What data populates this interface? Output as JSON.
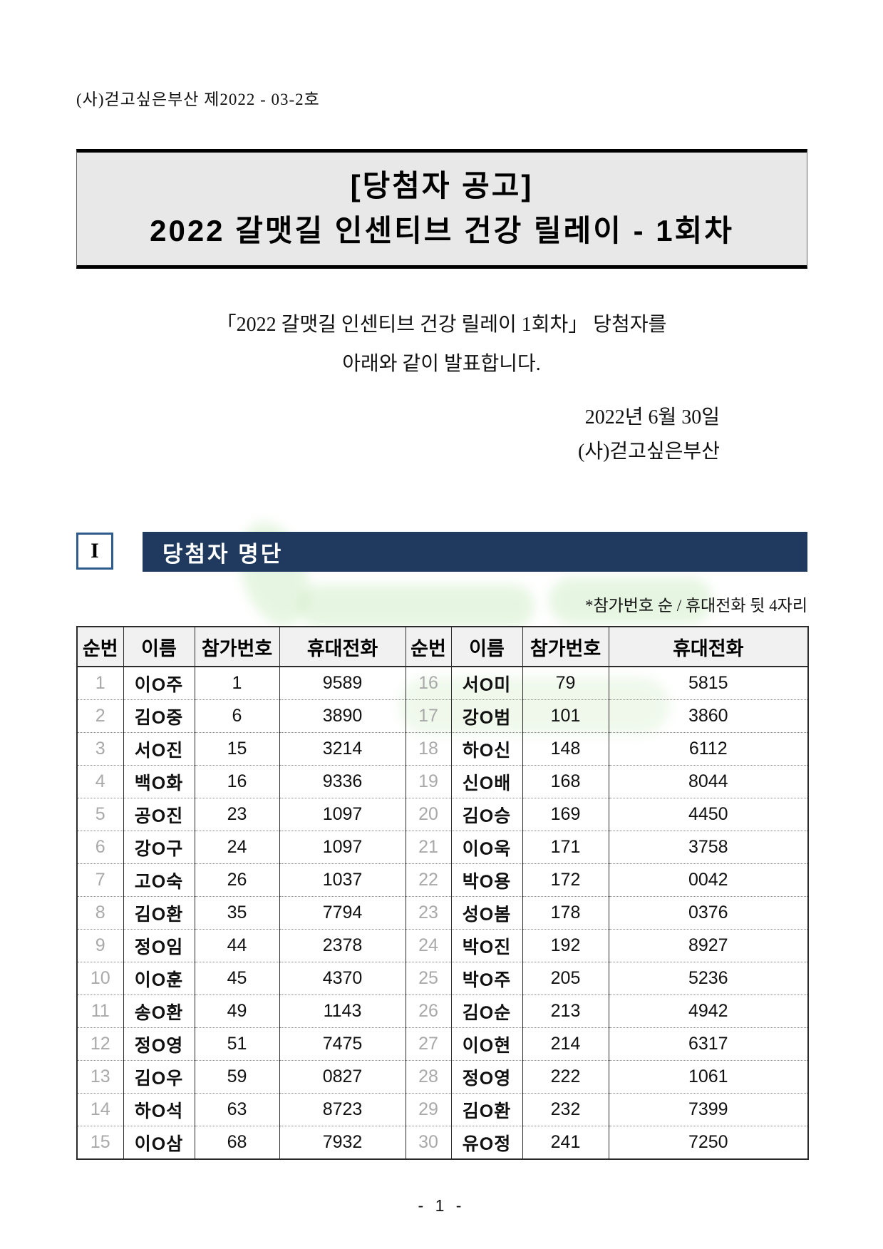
{
  "page": {
    "doc_number": "(사)걷고싶은부산 제2022 - 03-2호",
    "footer_page": "- 1 -"
  },
  "title_box": {
    "line1": "[당첨자 공고]",
    "line2": "2022 갈맷길 인센티브 건강 릴레이 - 1회차",
    "background_color": "#e8e8e8"
  },
  "body": {
    "line1": "「2022 갈맷길 인센티브 건강 릴레이 1회차」  당첨자를",
    "line2": "아래와 같이 발표합니다.",
    "date": "2022년 6월 30일",
    "org": "(사)걷고싶은부산"
  },
  "section": {
    "numeral": "I",
    "title": "당첨자 명단",
    "note": "*참가번호 순 / 휴대전화 뒷 4자리",
    "accent_color": "#1f3a5e",
    "numeral_border_color": "#2f5b8f"
  },
  "table": {
    "headers": [
      "순번",
      "이름",
      "참가번호",
      "휴대전화",
      "순번",
      "이름",
      "참가번호",
      "휴대전화"
    ],
    "rows_left": [
      {
        "no": "1",
        "name": "이O주",
        "num": "1",
        "phone": "9589"
      },
      {
        "no": "2",
        "name": "김O중",
        "num": "6",
        "phone": "3890"
      },
      {
        "no": "3",
        "name": "서O진",
        "num": "15",
        "phone": "3214"
      },
      {
        "no": "4",
        "name": "백O화",
        "num": "16",
        "phone": "9336"
      },
      {
        "no": "5",
        "name": "공O진",
        "num": "23",
        "phone": "1097"
      },
      {
        "no": "6",
        "name": "강O구",
        "num": "24",
        "phone": "1097"
      },
      {
        "no": "7",
        "name": "고O숙",
        "num": "26",
        "phone": "1037"
      },
      {
        "no": "8",
        "name": "김O환",
        "num": "35",
        "phone": "7794"
      },
      {
        "no": "9",
        "name": "정O임",
        "num": "44",
        "phone": "2378"
      },
      {
        "no": "10",
        "name": "이O훈",
        "num": "45",
        "phone": "4370"
      },
      {
        "no": "11",
        "name": "송O환",
        "num": "49",
        "phone": "1143"
      },
      {
        "no": "12",
        "name": "정O영",
        "num": "51",
        "phone": "7475"
      },
      {
        "no": "13",
        "name": "김O우",
        "num": "59",
        "phone": "0827"
      },
      {
        "no": "14",
        "name": "하O석",
        "num": "63",
        "phone": "8723"
      },
      {
        "no": "15",
        "name": "이O삼",
        "num": "68",
        "phone": "7932"
      }
    ],
    "rows_right": [
      {
        "no": "16",
        "name": "서O미",
        "num": "79",
        "phone": "5815"
      },
      {
        "no": "17",
        "name": "강O범",
        "num": "101",
        "phone": "3860"
      },
      {
        "no": "18",
        "name": "하O신",
        "num": "148",
        "phone": "6112"
      },
      {
        "no": "19",
        "name": "신O배",
        "num": "168",
        "phone": "8044"
      },
      {
        "no": "20",
        "name": "김O승",
        "num": "169",
        "phone": "4450"
      },
      {
        "no": "21",
        "name": "이O욱",
        "num": "171",
        "phone": "3758"
      },
      {
        "no": "22",
        "name": "박O용",
        "num": "172",
        "phone": "0042"
      },
      {
        "no": "23",
        "name": "성O봄",
        "num": "178",
        "phone": "0376"
      },
      {
        "no": "24",
        "name": "박O진",
        "num": "192",
        "phone": "8927"
      },
      {
        "no": "25",
        "name": "박O주",
        "num": "205",
        "phone": "5236"
      },
      {
        "no": "26",
        "name": "김O순",
        "num": "213",
        "phone": "4942"
      },
      {
        "no": "27",
        "name": "이O현",
        "num": "214",
        "phone": "6317"
      },
      {
        "no": "28",
        "name": "정O영",
        "num": "222",
        "phone": "1061"
      },
      {
        "no": "29",
        "name": "김O환",
        "num": "232",
        "phone": "7399"
      },
      {
        "no": "30",
        "name": "유O정",
        "num": "241",
        "phone": "7250"
      }
    ]
  }
}
